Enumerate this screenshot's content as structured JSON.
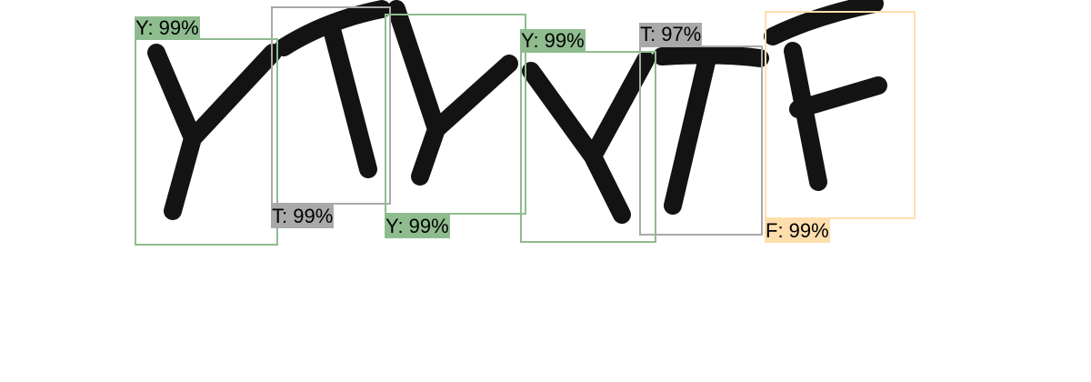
{
  "colors": {
    "Y": "#8fbc8f",
    "T": "#a9a9a9",
    "F": "#ffdead",
    "glyph": "#000000",
    "background": "#ffffff"
  },
  "detections": [
    {
      "char": "Y",
      "confidence": "99%",
      "label": "Y: 99%"
    },
    {
      "char": "T",
      "confidence": "99%",
      "label": "T: 99%"
    },
    {
      "char": "Y",
      "confidence": "99%",
      "label": "Y: 99%"
    },
    {
      "char": "Y",
      "confidence": "99%",
      "label": "Y: 99%"
    },
    {
      "char": "T",
      "confidence": "97%",
      "label": "T: 97%"
    },
    {
      "char": "F",
      "confidence": "99%",
      "label": "F: 99%"
    }
  ]
}
